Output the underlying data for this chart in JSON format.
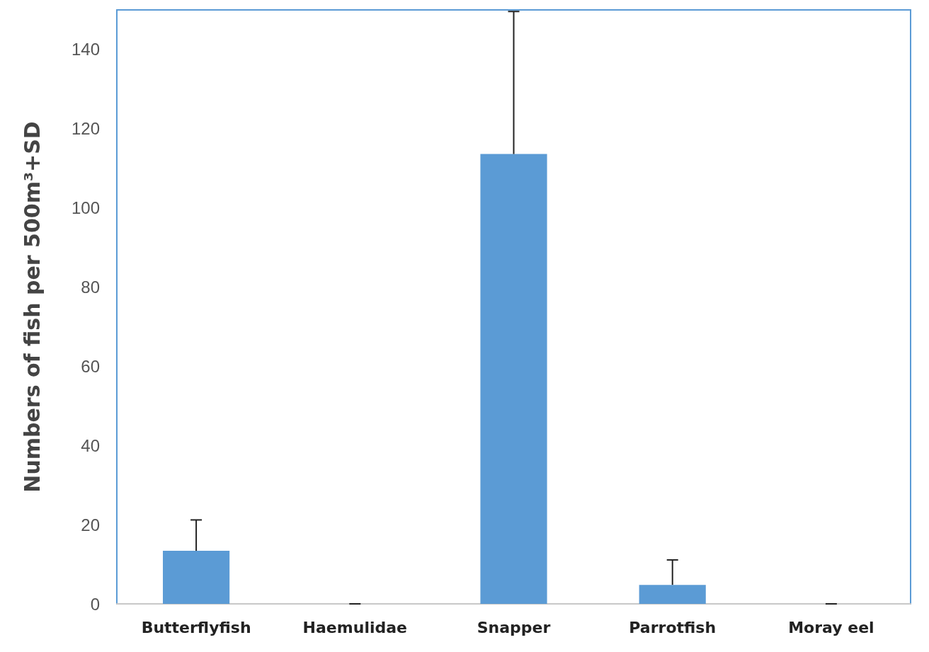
{
  "chart_data": {
    "type": "bar",
    "ylabel": "Numbers of fish per 500m³+SD",
    "categories": [
      "Butterflyfish",
      "Haemulidae",
      "Snapper",
      "Parrotfish",
      "Moray eel"
    ],
    "values": [
      13.4,
      0,
      113.6,
      4.8,
      0
    ],
    "errors": [
      7.8,
      0,
      36,
      6.3,
      0
    ],
    "color": "#5b9bd5",
    "ylim": [
      0,
      150
    ],
    "yticks": [
      0,
      20,
      40,
      60,
      80,
      100,
      120,
      140
    ],
    "grid": false
  }
}
